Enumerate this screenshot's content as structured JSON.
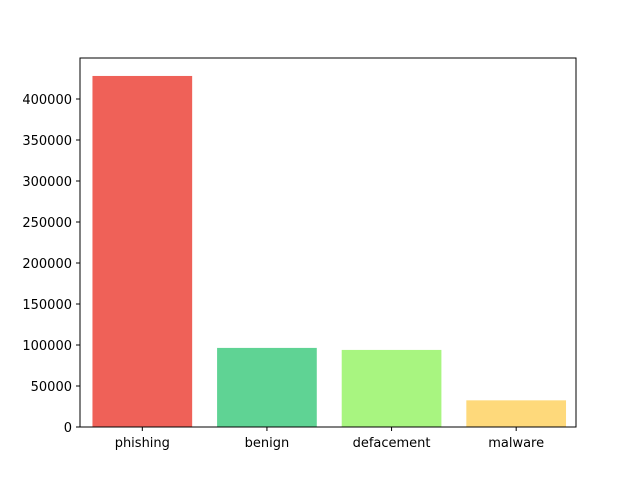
{
  "chart_data": {
    "type": "bar",
    "title": "",
    "xlabel": "",
    "ylabel": "",
    "categories": [
      "phishing",
      "benign",
      "defacement",
      "malware"
    ],
    "values": [
      428103,
      96457,
      94000,
      32520
    ],
    "colors": [
      "#ef6158",
      "#5fd394",
      "#a8f580",
      "#fed97b"
    ],
    "ylim": [
      0,
      450000
    ],
    "yticks": [
      0,
      50000,
      100000,
      150000,
      200000,
      250000,
      300000,
      350000,
      400000
    ],
    "ytick_labels": [
      "0",
      "50000",
      "100000",
      "150000",
      "200000",
      "250000",
      "300000",
      "350000",
      "400000"
    ],
    "grid": false,
    "legend": "none"
  }
}
